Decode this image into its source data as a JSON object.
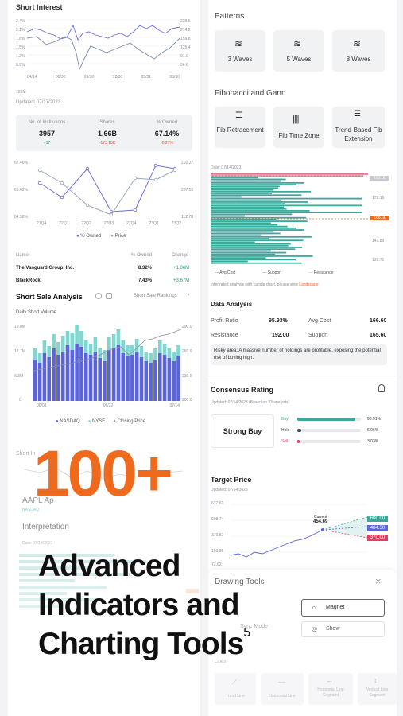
{
  "left": {
    "short_interest": {
      "title": "Short Interest",
      "y_left": [
        "2.4%",
        "2.1%",
        "1.8%",
        "1.5%",
        "1.2%",
        "0.9%"
      ],
      "y_right": [
        "228.6",
        "214.2",
        "159.8",
        "125.4",
        "91.0",
        "56.6"
      ],
      "x_labels": [
        "04/14",
        "06/30",
        "09/30",
        "12/30",
        "03/31",
        "06/30"
      ],
      "bottom_tag": "120M",
      "updated": "Updated: 07/17/2023"
    },
    "institutions": {
      "headers": [
        "No. of Institutions",
        "Shares",
        "% Owned"
      ],
      "values": [
        "3957",
        "1.66B",
        "67.14%"
      ],
      "changes": [
        "+17",
        "-173.18K",
        "-0.27%"
      ]
    },
    "owned_chart": {
      "y_left": [
        "67.46%",
        "66.02%",
        "64.58%"
      ],
      "y_right": [
        "202.37",
        "207.55",
        "112.70"
      ],
      "x_labels": [
        "21Q4",
        "22Q1",
        "22Q2",
        "22Q3",
        "22Q4",
        "23Q1",
        "23Q2"
      ],
      "legend": [
        "% Owned",
        "Price"
      ]
    },
    "holders": {
      "headers": [
        "Name",
        "% Owned",
        "Change"
      ],
      "rows": [
        {
          "name": "The Vanguard Group, Inc.",
          "owned": "8.32%",
          "change": "+1.06M"
        },
        {
          "name": "BlackRock",
          "owned": "7.43%",
          "change": "+3.67M"
        }
      ]
    },
    "short_sale": {
      "title": "Short Sale Analysis",
      "rankings_link": "Short Sale Rankings",
      "subtitle": "Daily Short Volume",
      "y_left": [
        "19.0M",
        "12.7M",
        "6.3M",
        "0"
      ],
      "y_right": [
        "290.0",
        "260.0",
        "230.0",
        "200.0"
      ],
      "x_labels": [
        "06/01",
        "06/22",
        "07/14"
      ],
      "legend": [
        "NASDAQ",
        "NYSE",
        "Closing Price"
      ]
    },
    "faded": {
      "short_interest_2": "Short In",
      "ticker": "AAPL",
      "ticker_tail": "Ap",
      "ticker_sub": "NASDAQ",
      "interpretation": "Interpretation",
      "date": "Date: 07/14/2023"
    }
  },
  "right": {
    "patterns": {
      "title": "Patterns",
      "tiles": [
        "3 Waves",
        "5 Waves",
        "8 Waves"
      ]
    },
    "fib": {
      "title": "Fibonacci and Gann",
      "tiles": [
        "Fib Retracement",
        "Fib Time Zone",
        "Trend-Based Fib Extension"
      ]
    },
    "distribution": {
      "date": "Date: 07/14/2023",
      "y_right": [
        "188.34",
        "180.25",
        "172.16",
        "164.07",
        "155.98",
        "147.89",
        "139.80",
        "131.71"
      ],
      "tags": {
        "top": "192.00",
        "mid": "166.60"
      },
      "legend": [
        "Avg Cost",
        "Support",
        "Resistance"
      ],
      "note": "Integrated analysis with candle chart, please view",
      "note_link": "Landscape"
    },
    "data_analysis": {
      "title": "Data Analysis",
      "profit_ratio_label": "Profit Ratio",
      "profit_ratio": "95.93%",
      "avg_cost_label": "Avg Cost",
      "avg_cost": "166.60",
      "resistance_label": "Resistance",
      "resistance": "192.00",
      "support_label": "Support",
      "support": "165.60",
      "risk": "Risky area: A massive number of holdings are profitable, exposing the potential risk of buying high."
    },
    "consensus": {
      "title": "Consensus Rating",
      "updated": "Updated: 07/14/2023 (Based on  33 analysts)",
      "rating": "Strong Buy",
      "rows": [
        {
          "label": "Buy",
          "pct": "90.91%",
          "fraction": 0.9091,
          "color": "#3aa89a"
        },
        {
          "label": "Hold",
          "pct": "6.06%",
          "fraction": 0.0606,
          "color": "#3e4a5a"
        },
        {
          "label": "Sell",
          "pct": "3.03%",
          "fraction": 0.0303,
          "color": "#e0405f"
        }
      ]
    },
    "target": {
      "title": "Target Price",
      "updated": "Updated: 07/14/2023",
      "y_left": [
        "637.61",
        "608.74",
        "379.87",
        "150.95",
        "73.62"
      ],
      "current_label": "Current",
      "current_value": "454.69",
      "tags": [
        "600.00",
        "484.30",
        "370.00"
      ]
    },
    "drawing_tools": {
      "title": "Drawing Tools",
      "magnet": "Magnet",
      "sync_mode": "Sync Mode",
      "show": "Show",
      "lines_title": "Lines",
      "lines": [
        "Trend Line",
        "Horizontal Line",
        "Horizontal Line Segment",
        "Vertical Line Segment"
      ]
    }
  },
  "overlay": {
    "big": "100+",
    "line1": "Advanced",
    "line2": "Indicators and",
    "line3": "Charting Tools",
    "superscript": "5"
  },
  "colors": {
    "accent": "#ef6a1d",
    "teal": "#3aa89a",
    "purple": "#6b6fd6",
    "nasdaq": "#5b64d8",
    "nyse": "#7fd7cf"
  }
}
